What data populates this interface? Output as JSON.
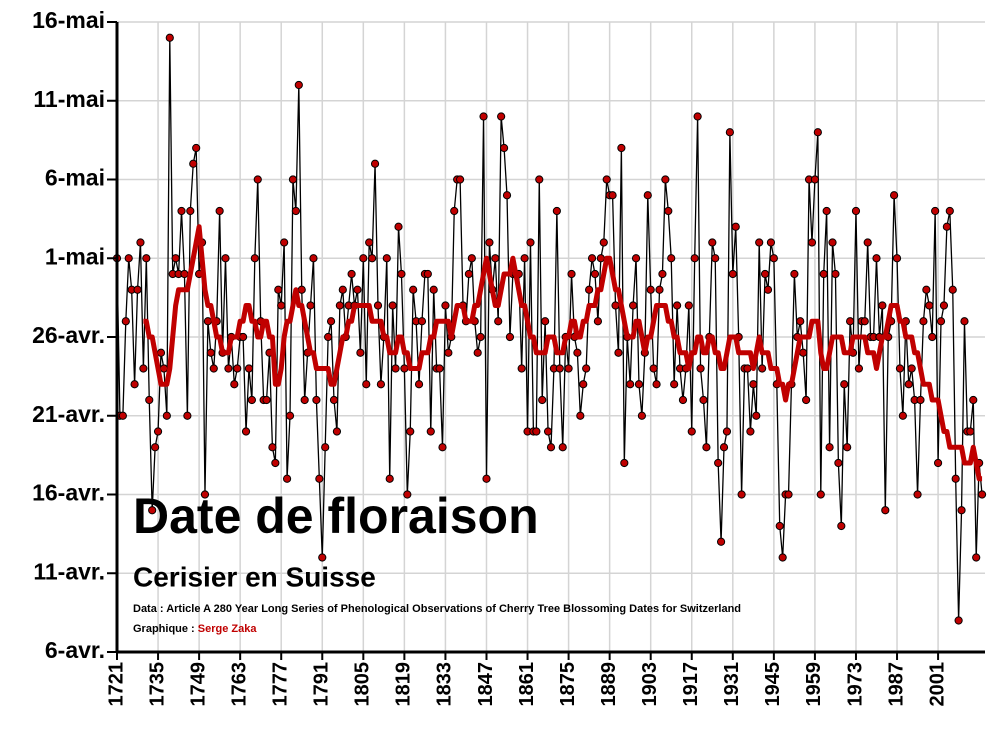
{
  "chart_data": {
    "type": "line",
    "title": "Date de floraison",
    "subtitle": "Cerisier en Suisse",
    "source": "Data : Article A 280 Year Long Series of Phenological Observations of Cherry Tree Blossoming Dates for Switzerland",
    "credit_label": "Graphique : ",
    "credit_author": "Serge Zaka",
    "x": [
      1721,
      1722,
      1723,
      1724,
      1725,
      1726,
      1727,
      1728,
      1729,
      1730,
      1731,
      1732,
      1733,
      1734,
      1735,
      1736,
      1737,
      1738,
      1739,
      1740,
      1741,
      1742,
      1743,
      1744,
      1745,
      1746,
      1747,
      1748,
      1749,
      1750,
      1751,
      1752,
      1753,
      1754,
      1755,
      1756,
      1757,
      1758,
      1759,
      1760,
      1761,
      1762,
      1763,
      1764,
      1765,
      1766,
      1767,
      1768,
      1769,
      1770,
      1771,
      1772,
      1773,
      1774,
      1775,
      1776,
      1777,
      1778,
      1779,
      1780,
      1781,
      1782,
      1783,
      1784,
      1785,
      1786,
      1787,
      1788,
      1789,
      1790,
      1791,
      1792,
      1793,
      1794,
      1795,
      1796,
      1797,
      1798,
      1799,
      1800,
      1801,
      1802,
      1803,
      1804,
      1805,
      1806,
      1807,
      1808,
      1809,
      1810,
      1811,
      1812,
      1813,
      1814,
      1815,
      1816,
      1817,
      1818,
      1819,
      1820,
      1821,
      1822,
      1823,
      1824,
      1825,
      1826,
      1827,
      1828,
      1829,
      1830,
      1831,
      1832,
      1833,
      1834,
      1835,
      1836,
      1837,
      1838,
      1839,
      1840,
      1841,
      1842,
      1843,
      1844,
      1845,
      1846,
      1847,
      1848,
      1849,
      1850,
      1851,
      1852,
      1853,
      1854,
      1855,
      1856,
      1857,
      1858,
      1859,
      1860,
      1861,
      1862,
      1863,
      1864,
      1865,
      1866,
      1867,
      1868,
      1869,
      1870,
      1871,
      1872,
      1873,
      1874,
      1875,
      1876,
      1877,
      1878,
      1879,
      1880,
      1881,
      1882,
      1883,
      1884,
      1885,
      1886,
      1887,
      1888,
      1889,
      1890,
      1891,
      1892,
      1893,
      1894,
      1895,
      1896,
      1897,
      1898,
      1899,
      1900,
      1901,
      1902,
      1903,
      1904,
      1905,
      1906,
      1907,
      1908,
      1909,
      1910,
      1911,
      1912,
      1913,
      1914,
      1915,
      1916,
      1917,
      1918,
      1919,
      1920,
      1921,
      1922,
      1923,
      1924,
      1925,
      1926,
      1927,
      1928,
      1929,
      1930,
      1931,
      1932,
      1933,
      1934,
      1935,
      1936,
      1937,
      1938,
      1939,
      1940,
      1941,
      1942,
      1943,
      1944,
      1945,
      1946,
      1947,
      1948,
      1949,
      1950,
      1951,
      1952,
      1953,
      1954,
      1955,
      1956,
      1957,
      1958,
      1959,
      1960,
      1961,
      1962,
      1963,
      1964,
      1965,
      1966,
      1967,
      1968,
      1969,
      1970,
      1971,
      1972,
      1973,
      1974,
      1975,
      1976,
      1977,
      1978,
      1979,
      1980,
      1981,
      1982,
      1983,
      1984,
      1985,
      1986,
      1987,
      1988,
      1989,
      1990,
      1991,
      1992,
      1993,
      1994,
      1995,
      1996,
      1997,
      1998,
      1999,
      2000,
      2001,
      2002,
      2003,
      2004,
      2005,
      2006,
      2007,
      2008,
      2009,
      2010,
      2011,
      2012,
      2013,
      2014,
      2015,
      2016
    ],
    "series": [
      {
        "color": "#c00000",
        "markers": true,
        "values": [
          121,
          111,
          111,
          117,
          121,
          119,
          113,
          119,
          122,
          114,
          121,
          112,
          105,
          109,
          110,
          115,
          114,
          111,
          135,
          120,
          121,
          120,
          124,
          120,
          111,
          124,
          127,
          128,
          120,
          122,
          106,
          117,
          115,
          114,
          117,
          124,
          115,
          121,
          114,
          116,
          113,
          114,
          116,
          116,
          110,
          114,
          112,
          121,
          126,
          117,
          112,
          112,
          115,
          109,
          108,
          119,
          118,
          122,
          107,
          111,
          126,
          124,
          132,
          119,
          112,
          115,
          118,
          121,
          112,
          107,
          102,
          109,
          116,
          117,
          112,
          110,
          118,
          119,
          116,
          118,
          120,
          118,
          119,
          115,
          121,
          113,
          122,
          121,
          127,
          118,
          113,
          116,
          121,
          107,
          118,
          114,
          123,
          120,
          114,
          106,
          110,
          119,
          117,
          113,
          117,
          120,
          120,
          110,
          119,
          114,
          114,
          109,
          118,
          115,
          116,
          124,
          126,
          126,
          118,
          117,
          120,
          121,
          117,
          115,
          116,
          130,
          107,
          122,
          119,
          121,
          117,
          130,
          128,
          125,
          116,
          120,
          120,
          120,
          114,
          121,
          110,
          122,
          110,
          110,
          126,
          112,
          117,
          110,
          109,
          114,
          124,
          114,
          109,
          116,
          114,
          120,
          116,
          115,
          111,
          113,
          114,
          119,
          121,
          120,
          117,
          121,
          122,
          126,
          125,
          125,
          118,
          115,
          128,
          108,
          116,
          113,
          118,
          121,
          113,
          111,
          115,
          125,
          119,
          114,
          113,
          119,
          120,
          126,
          124,
          121,
          113,
          118,
          114,
          112,
          114,
          118,
          110,
          121,
          130,
          114,
          112,
          109,
          116,
          122,
          121,
          108,
          103,
          109,
          110,
          129,
          120,
          123,
          116,
          106,
          114,
          114,
          110,
          113,
          111,
          122,
          114,
          120,
          119,
          122,
          121,
          113,
          104,
          102,
          106,
          106,
          113,
          120,
          116,
          117,
          115,
          112,
          126,
          122,
          126,
          129,
          106,
          120,
          124,
          109,
          122,
          120,
          108,
          104,
          113,
          109,
          117,
          115,
          124,
          114,
          117,
          117,
          122,
          116,
          116,
          121,
          116,
          118,
          105,
          116,
          117,
          125,
          121,
          114,
          111,
          117,
          113,
          114,
          112,
          106,
          112,
          117,
          119,
          118,
          116,
          124,
          108,
          117,
          118,
          123,
          124,
          119,
          107,
          98,
          105,
          117,
          110,
          110,
          112,
          102,
          108,
          106
        ]
      },
      {
        "color": "#c00000",
        "markers": false,
        "values": [
          null,
          null,
          null,
          null,
          null,
          null,
          null,
          null,
          null,
          117,
          117,
          116,
          116,
          115,
          114,
          113,
          113,
          113,
          114,
          116,
          118,
          119,
          119,
          119,
          119,
          120,
          121,
          122,
          123,
          121,
          119,
          118,
          118,
          117,
          116,
          116,
          115,
          115,
          115,
          116,
          116,
          116,
          117,
          117,
          118,
          118,
          117,
          117,
          116,
          116,
          117,
          117,
          116,
          116,
          113,
          113,
          114,
          116,
          117,
          117,
          118,
          119,
          118,
          118,
          117,
          116,
          115,
          115,
          114,
          114,
          114,
          114,
          114,
          113,
          113,
          114,
          115,
          116,
          116,
          117,
          117,
          118,
          118,
          118,
          118,
          118,
          118,
          117,
          117,
          117,
          117,
          116,
          116,
          115,
          115,
          115,
          116,
          116,
          115,
          115,
          114,
          114,
          114,
          114,
          115,
          115,
          115,
          116,
          116,
          117,
          117,
          117,
          117,
          117,
          116,
          117,
          118,
          118,
          118,
          117,
          117,
          117,
          118,
          118,
          119,
          120,
          121,
          120,
          119,
          118,
          118,
          119,
          120,
          120,
          120,
          121,
          120,
          119,
          118,
          118,
          117,
          116,
          116,
          115,
          115,
          115,
          115,
          116,
          116,
          116,
          115,
          115,
          115,
          116,
          116,
          117,
          117,
          116,
          116,
          117,
          117,
          118,
          118,
          118,
          119,
          119,
          120,
          121,
          121,
          120,
          119,
          119,
          118,
          117,
          116,
          116,
          116,
          117,
          117,
          116,
          115,
          116,
          116,
          117,
          118,
          118,
          118,
          118,
          117,
          117,
          116,
          116,
          115,
          115,
          115,
          114,
          115,
          115,
          116,
          116,
          115,
          115,
          116,
          116,
          115,
          115,
          114,
          114,
          115,
          116,
          116,
          116,
          115,
          115,
          115,
          115,
          115,
          114,
          115,
          116,
          115,
          115,
          115,
          114,
          114,
          114,
          113,
          113,
          112,
          113,
          113,
          114,
          115,
          116,
          116,
          116,
          116,
          117,
          117,
          117,
          115,
          114,
          114,
          115,
          116,
          116,
          116,
          116,
          115,
          115,
          115,
          116,
          116,
          116,
          116,
          116,
          115,
          115,
          115,
          114,
          115,
          116,
          116,
          117,
          118,
          118,
          118,
          117,
          117,
          116,
          116,
          116,
          115,
          115,
          114,
          113,
          113,
          113,
          112,
          112,
          112,
          111,
          110,
          110,
          109,
          109,
          109,
          109,
          109,
          108,
          108,
          108,
          109,
          108,
          107,
          107
        ]
      }
    ],
    "xlim": [
      1721,
      2017
    ],
    "xticks": [
      1721,
      1735,
      1749,
      1763,
      1777,
      1791,
      1805,
      1819,
      1833,
      1847,
      1861,
      1875,
      1889,
      1903,
      1917,
      1931,
      1945,
      1959,
      1973,
      1987,
      2001
    ],
    "ylim": [
      96,
      136
    ],
    "yticks": [
      {
        "value": 96,
        "label": "6-avr."
      },
      {
        "value": 101,
        "label": "11-avr."
      },
      {
        "value": 106,
        "label": "16-avr."
      },
      {
        "value": 111,
        "label": "21-avr."
      },
      {
        "value": 116,
        "label": "26-avr."
      },
      {
        "value": 121,
        "label": "1-mai"
      },
      {
        "value": 126,
        "label": "6-mai"
      },
      {
        "value": 131,
        "label": "11-mai"
      },
      {
        "value": 136,
        "label": "16-mai"
      }
    ],
    "grid": true
  }
}
